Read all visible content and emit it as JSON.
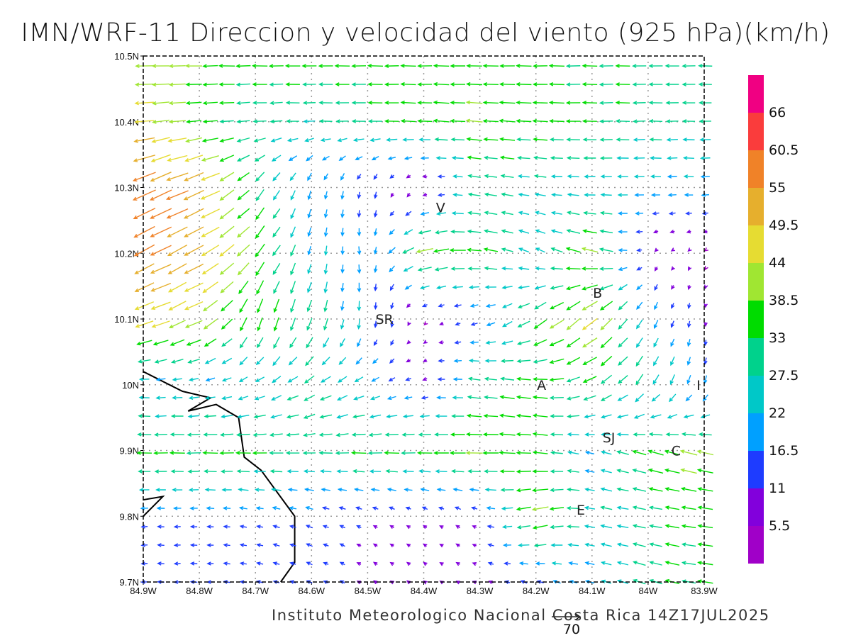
{
  "title": "IMN/WRF-11 Direccion y velocidad del viento (925 hPa)(km/h)",
  "footer": "Instituto Meteorologico Nacional Costa Rica 14Z17JUL2025",
  "chart_data": {
    "type": "vector-field",
    "units": "km/h",
    "lon_range": [
      -84.9,
      -83.9
    ],
    "lat_range": [
      9.7,
      10.5
    ],
    "x_ticks": [
      "84.9W",
      "84.8W",
      "84.7W",
      "84.6W",
      "84.5W",
      "84.4W",
      "84.3W",
      "84.2W",
      "84.1W",
      "84W",
      "83.9W"
    ],
    "y_ticks": [
      "10.5N",
      "10.4N",
      "10.3N",
      "10.2N",
      "10.1N",
      "10N",
      "9.9N",
      "9.8N",
      "9.7N"
    ],
    "grid": true,
    "reference_vector": {
      "value": 70,
      "label": "70"
    },
    "colorbar": {
      "labels": [
        "5.5",
        "11",
        "16.5",
        "22",
        "27.5",
        "33",
        "38.5",
        "44",
        "49.5",
        "55",
        "60.5",
        "66"
      ],
      "levels": [
        5.5,
        11,
        16.5,
        22,
        27.5,
        33,
        38.5,
        44,
        49.5,
        55,
        60.5,
        66
      ],
      "colors": [
        "#a000c8",
        "#8200dc",
        "#1e3cff",
        "#00a0ff",
        "#00c8c8",
        "#00d28c",
        "#00dc00",
        "#a0e632",
        "#e6dc32",
        "#e6af2d",
        "#f08228",
        "#fa3c3c",
        "#f00082"
      ]
    },
    "field_coarse_note_lats": [
      10.5,
      10.4,
      10.3,
      10.2,
      10.1,
      10.0,
      9.9,
      9.8,
      9.7
    ],
    "field_coarse_lons": [
      -84.9,
      -84.8,
      -84.7,
      -84.6,
      -84.5,
      -84.4,
      -84.3,
      -84.2,
      -84.1,
      -84.0,
      -83.9
    ],
    "u": [
      [
        -42,
        -38,
        -36,
        -35,
        -35,
        -35,
        -36,
        -35,
        -34,
        -33,
        -32
      ],
      [
        -45,
        -35,
        -30,
        -28,
        -32,
        -35,
        -38,
        -36,
        -33,
        -30,
        -28
      ],
      [
        -55,
        -50,
        -20,
        -5,
        -3,
        -4,
        -30,
        -25,
        -25,
        -22,
        -20
      ],
      [
        -50,
        -45,
        -25,
        -5,
        3,
        -40,
        -35,
        -20,
        -40,
        -5,
        -3
      ],
      [
        -45,
        -40,
        -10,
        -10,
        0,
        -3,
        -15,
        -30,
        -35,
        -10,
        0
      ],
      [
        -20,
        -20,
        -20,
        -25,
        -20,
        -10,
        -30,
        -35,
        -30,
        -15,
        -5
      ],
      [
        -35,
        -35,
        -35,
        -30,
        -35,
        -35,
        -40,
        -35,
        -20,
        -35,
        -40
      ],
      [
        -15,
        -15,
        -15,
        -15,
        -10,
        -8,
        -10,
        -40,
        -25,
        -30,
        -35
      ],
      [
        -15,
        -15,
        -15,
        -12,
        -8,
        -6,
        -8,
        -15,
        -20,
        -30,
        -35
      ]
    ],
    "v": [
      [
        0,
        0,
        0,
        0,
        0,
        0,
        0,
        0,
        0,
        0,
        0
      ],
      [
        -5,
        -3,
        -2,
        0,
        0,
        2,
        3,
        2,
        0,
        0,
        0
      ],
      [
        -25,
        -20,
        -25,
        -20,
        -15,
        -3,
        5,
        3,
        0,
        0,
        0
      ],
      [
        -25,
        -25,
        -30,
        -22,
        -18,
        -10,
        5,
        10,
        10,
        -5,
        -3
      ],
      [
        -15,
        -20,
        -35,
        -30,
        -20,
        -3,
        -5,
        -20,
        -30,
        -20,
        -10
      ],
      [
        0,
        -3,
        -10,
        -15,
        -10,
        -3,
        5,
        5,
        -15,
        -25,
        -20
      ],
      [
        0,
        0,
        0,
        0,
        0,
        0,
        0,
        3,
        5,
        10,
        10
      ],
      [
        0,
        0,
        3,
        5,
        5,
        5,
        5,
        -10,
        5,
        5,
        5
      ],
      [
        0,
        0,
        3,
        5,
        5,
        5,
        3,
        5,
        5,
        10,
        5
      ]
    ],
    "stations": [
      {
        "name": "V",
        "lon": -84.37,
        "lat": 10.27
      },
      {
        "name": "SR",
        "lon": -84.47,
        "lat": 10.1
      },
      {
        "name": "B",
        "lon": -84.09,
        "lat": 10.14
      },
      {
        "name": "A",
        "lon": -84.19,
        "lat": 10.0
      },
      {
        "name": "I",
        "lon": -83.91,
        "lat": 10.0
      },
      {
        "name": "SJ",
        "lon": -84.07,
        "lat": 9.92
      },
      {
        "name": "C",
        "lon": -83.95,
        "lat": 9.9
      },
      {
        "name": "E",
        "lon": -84.12,
        "lat": 9.81
      }
    ],
    "coastline": [
      [
        [
          -84.9,
          10.02
        ],
        [
          -84.83,
          9.99
        ],
        [
          -84.78,
          9.98
        ],
        [
          -84.82,
          9.96
        ],
        [
          -84.77,
          9.97
        ],
        [
          -84.73,
          9.95
        ],
        [
          -84.72,
          9.89
        ],
        [
          -84.69,
          9.87
        ],
        [
          -84.63,
          9.8
        ],
        [
          -84.63,
          9.73
        ],
        [
          -84.655,
          9.7
        ]
      ],
      [
        [
          -84.9,
          9.825
        ],
        [
          -84.865,
          9.83
        ],
        [
          -84.9,
          9.8
        ]
      ]
    ]
  }
}
